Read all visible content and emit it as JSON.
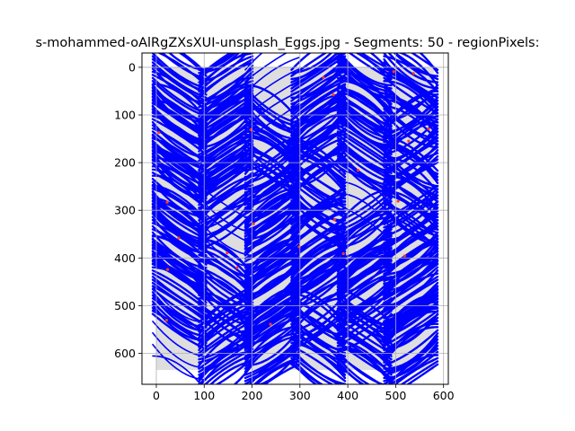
{
  "chart_data": {
    "type": "image",
    "title": "s-mohammed-oAlRgZXsXUI-unsplash_Eggs.jpg - Segments: 50 - regionPixels:",
    "xlabel": "",
    "ylabel": "",
    "x_ticks": [
      0,
      100,
      200,
      300,
      400,
      500,
      600
    ],
    "y_ticks": [
      0,
      100,
      200,
      300,
      400,
      500,
      600
    ],
    "xlim": [
      -30,
      610
    ],
    "ylim": [
      665,
      -30
    ],
    "y_inverted": true,
    "grid": true,
    "image_extent": {
      "x": [
        0,
        580
      ],
      "y": [
        0,
        635
      ]
    },
    "colors": {
      "background": "#dedede",
      "segment_stroke": "#0000ff",
      "boundary_marks": "#ff3b1f",
      "grid": "#b0b0b0"
    }
  }
}
